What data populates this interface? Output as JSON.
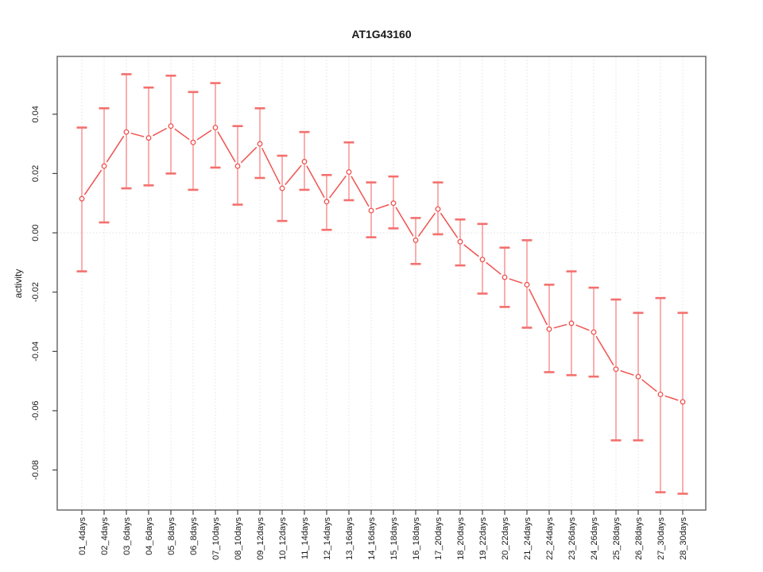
{
  "chart_data": {
    "type": "scatter",
    "title": "AT1G43160",
    "xlabel": "",
    "ylabel": "activity",
    "legend": "none",
    "grid": "vertical-dotted-per-category-plus-dotted-zero-line",
    "categories": [
      "01_4days",
      "02_4days",
      "03_6days",
      "04_6days",
      "05_8days",
      "06_8days",
      "07_10days",
      "08_10days",
      "09_12days",
      "10_12days",
      "11_14days",
      "12_14days",
      "13_16days",
      "14_16days",
      "15_18days",
      "16_18days",
      "17_20days",
      "18_20days",
      "19_22days",
      "20_22days",
      "21_24days",
      "22_24days",
      "23_26days",
      "24_26days",
      "25_28days",
      "26_28days",
      "27_30days",
      "28_30days"
    ],
    "values": [
      0.0115,
      0.0225,
      0.034,
      0.032,
      0.036,
      0.0305,
      0.0355,
      0.0225,
      0.03,
      0.015,
      0.024,
      0.0105,
      0.0205,
      0.0075,
      0.01,
      -0.0025,
      0.008,
      -0.003,
      -0.009,
      -0.015,
      -0.0175,
      -0.0325,
      -0.0305,
      -0.0335,
      -0.046,
      -0.0485,
      -0.0545,
      -0.057
    ],
    "upper": [
      0.0355,
      0.042,
      0.0535,
      0.049,
      0.053,
      0.0475,
      0.0505,
      0.036,
      0.042,
      0.026,
      0.034,
      0.0195,
      0.0305,
      0.017,
      0.019,
      0.005,
      0.017,
      0.0045,
      0.003,
      -0.005,
      -0.0025,
      -0.0175,
      -0.013,
      -0.0185,
      -0.0225,
      -0.027,
      -0.022,
      -0.027
    ],
    "lower": [
      -0.013,
      0.0035,
      0.015,
      0.016,
      0.02,
      0.0145,
      0.022,
      0.0095,
      0.0185,
      0.004,
      0.0145,
      0.001,
      0.011,
      -0.0015,
      0.0015,
      -0.0105,
      -0.0005,
      -0.011,
      -0.0205,
      -0.025,
      -0.032,
      -0.047,
      -0.048,
      -0.0485,
      -0.07,
      -0.07,
      -0.0875,
      -0.088
    ],
    "yticks": [
      0.04,
      0.02,
      0.0,
      -0.02,
      -0.04,
      -0.06,
      -0.08
    ],
    "ytick_labels": [
      "0.04",
      "0.02",
      "0.00",
      "-0.02",
      "-0.04",
      "-0.06",
      "-0.08"
    ],
    "ylim": [
      -0.0935,
      0.0595
    ],
    "colors": {
      "point_line": "#ef5350",
      "stem": "#f8a0a0",
      "cap": "#f3706e",
      "marker_fill": "#ffffff",
      "grid": "#e2e2e2",
      "zero_line": "#e0e0e0",
      "frame": "#6b6b6b",
      "tick": "#444444"
    }
  }
}
